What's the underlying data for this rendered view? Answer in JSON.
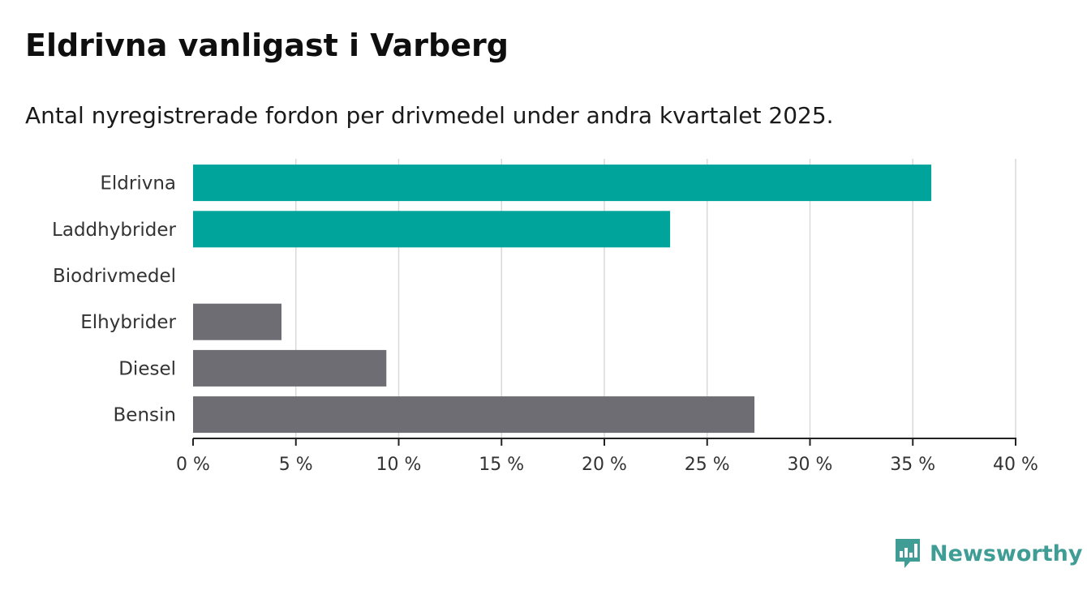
{
  "header": {
    "title": "Eldrivna vanligast i Varberg",
    "subtitle": "Antal nyregistrerade fordon per drivmedel under andra kvartalet 2025."
  },
  "brand": {
    "name": "Newsworthy",
    "icon": "newsworthy-logo-icon",
    "color": "#3f9d96"
  },
  "colors": {
    "highlight": "#00a49a",
    "other": "#6e6d73",
    "grid": "#d9d9d9",
    "axis": "#222222"
  },
  "chart_data": {
    "type": "bar",
    "orientation": "horizontal",
    "categories": [
      "Eldrivna",
      "Laddhybrider",
      "Biodrivmedel",
      "Elhybrider",
      "Diesel",
      "Bensin"
    ],
    "values": [
      35.9,
      23.2,
      0,
      4.3,
      9.4,
      27.3
    ],
    "bar_colors": [
      "#00a49a",
      "#00a49a",
      "#6e6d73",
      "#6e6d73",
      "#6e6d73",
      "#6e6d73"
    ],
    "xlim": [
      0,
      40
    ],
    "xticks": [
      0,
      5,
      10,
      15,
      20,
      25,
      30,
      35,
      40
    ],
    "xtick_labels": [
      "0 %",
      "5 %",
      "10 %",
      "15 %",
      "20 %",
      "25 %",
      "30 %",
      "35 %",
      "40 %"
    ],
    "grid": true,
    "legend": "none"
  }
}
